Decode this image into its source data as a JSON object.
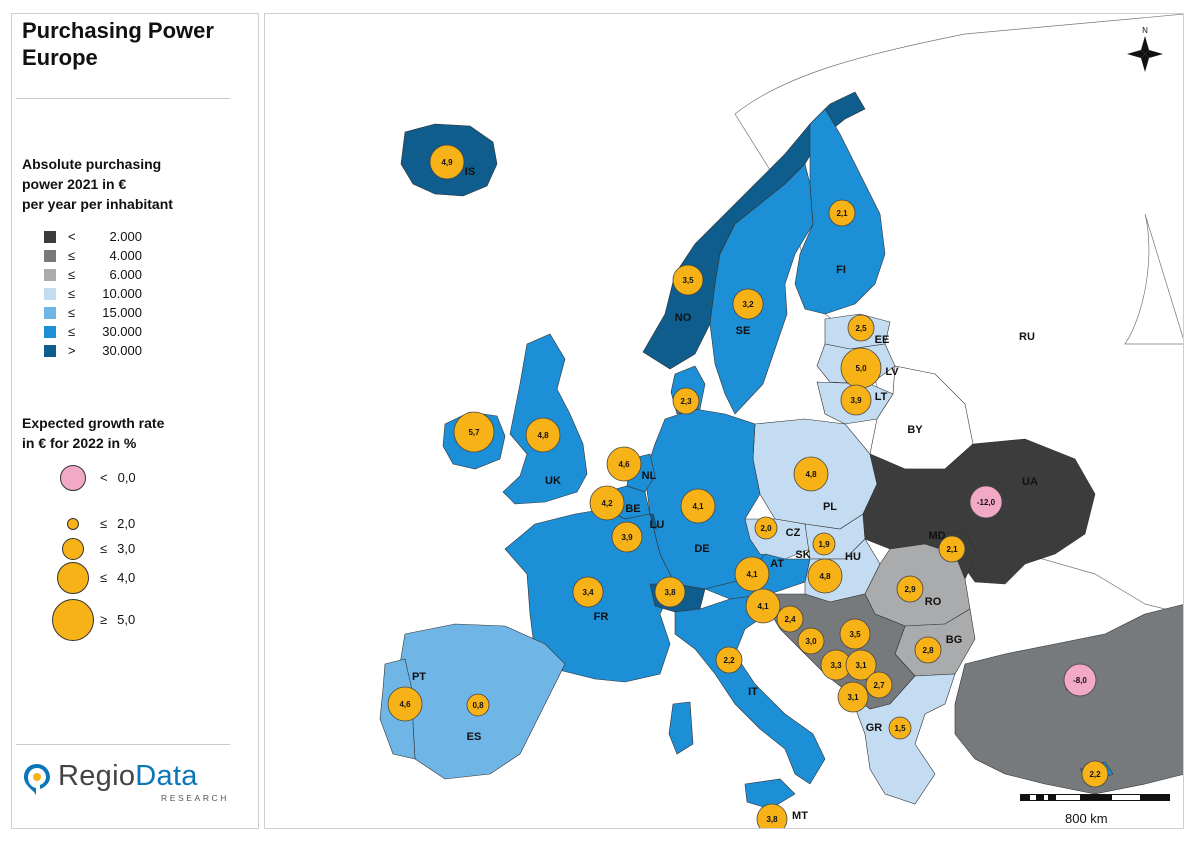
{
  "title": {
    "line1": "Purchasing Power",
    "line2": "Europe"
  },
  "legend_classes": {
    "heading": [
      "Absolute purchasing",
      "power 2021 in €",
      "per year per inhabitant"
    ],
    "items": [
      {
        "op": "<",
        "value": "2.000",
        "color": "#3c3c3c"
      },
      {
        "op": "≤",
        "value": "4.000",
        "color": "#777a7d"
      },
      {
        "op": "≤",
        "value": "6.000",
        "color": "#a9abad"
      },
      {
        "op": "≤",
        "value": "10.000",
        "color": "#c4dcf2"
      },
      {
        "op": "≤",
        "value": "15.000",
        "color": "#6fb5e6"
      },
      {
        "op": "≤",
        "value": "30.000",
        "color": "#1d8fd6"
      },
      {
        "op": ">",
        "value": "30.000",
        "color": "#0e5d8c"
      }
    ]
  },
  "legend_growth": {
    "heading": [
      "Expected growth rate",
      "in € for 2022 in %"
    ],
    "items": [
      {
        "op": "<",
        "value": "0,0",
        "color": "#f2a9c6"
      },
      {
        "op": "≤",
        "value": "2,0",
        "color": "#f7b217"
      },
      {
        "op": "≤",
        "value": "3,0",
        "color": "#f7b217"
      },
      {
        "op": "≤",
        "value": "4,0",
        "color": "#f7b217"
      },
      {
        "op": "≥",
        "value": "5,0",
        "color": "#f7b217"
      }
    ]
  },
  "logo": {
    "name_a": "Regio",
    "name_b": "Data",
    "sub": "RESEARCH"
  },
  "compass_label": "N",
  "scale_label": "800 km",
  "country_labels": [
    {
      "code": "IS"
    },
    {
      "code": "NO"
    },
    {
      "code": "SE"
    },
    {
      "code": "FI"
    },
    {
      "code": "RU"
    },
    {
      "code": "EE"
    },
    {
      "code": "LV"
    },
    {
      "code": "LT"
    },
    {
      "code": "BY"
    },
    {
      "code": "UK"
    },
    {
      "code": "NL"
    },
    {
      "code": "BE"
    },
    {
      "code": "LU"
    },
    {
      "code": "DE"
    },
    {
      "code": "PL"
    },
    {
      "code": "UA"
    },
    {
      "code": "CZ"
    },
    {
      "code": "SK"
    },
    {
      "code": "HU"
    },
    {
      "code": "MD"
    },
    {
      "code": "AT"
    },
    {
      "code": "FR"
    },
    {
      "code": "RO"
    },
    {
      "code": "BG"
    },
    {
      "code": "PT"
    },
    {
      "code": "ES"
    },
    {
      "code": "IT"
    },
    {
      "code": "TR"
    },
    {
      "code": "GR"
    },
    {
      "code": "MT"
    }
  ],
  "growth_bubbles": [
    {
      "label": "4,9",
      "value": 4.9
    },
    {
      "label": "3,5",
      "value": 3.5
    },
    {
      "label": "3,2",
      "value": 3.2
    },
    {
      "label": "2,1",
      "value": 2.1
    },
    {
      "label": "2,5",
      "value": 2.5
    },
    {
      "label": "5,0",
      "value": 5.0
    },
    {
      "label": "3,9",
      "value": 3.9
    },
    {
      "label": "2,3",
      "value": 2.3
    },
    {
      "label": "5,7",
      "value": 5.7
    },
    {
      "label": "4,8",
      "value": 4.8
    },
    {
      "label": "4,6",
      "value": 4.6
    },
    {
      "label": "4,2",
      "value": 4.2
    },
    {
      "label": "3,9",
      "value": 3.9
    },
    {
      "label": "4,1",
      "value": 4.1
    },
    {
      "label": "4,8",
      "value": 4.8
    },
    {
      "label": "-12,0",
      "value": -12.0
    },
    {
      "label": "2,0",
      "value": 2.0
    },
    {
      "label": "1,9",
      "value": 1.9
    },
    {
      "label": "4,8",
      "value": 4.8
    },
    {
      "label": "2,1",
      "value": 2.1
    },
    {
      "label": "4,1",
      "value": 4.1
    },
    {
      "label": "3,4",
      "value": 3.4
    },
    {
      "label": "3,8",
      "value": 3.8
    },
    {
      "label": "4,1",
      "value": 4.1
    },
    {
      "label": "2,9",
      "value": 2.9
    },
    {
      "label": "2,4",
      "value": 2.4
    },
    {
      "label": "3,0",
      "value": 3.0
    },
    {
      "label": "3,5",
      "value": 3.5
    },
    {
      "label": "3,3",
      "value": 3.3
    },
    {
      "label": "3,1",
      "value": 3.1
    },
    {
      "label": "2,8",
      "value": 2.8
    },
    {
      "label": "2,7",
      "value": 2.7
    },
    {
      "label": "3,1",
      "value": 3.1
    },
    {
      "label": "2,2",
      "value": 2.2
    },
    {
      "label": "4,6",
      "value": 4.6
    },
    {
      "label": "0,8",
      "value": 0.8
    },
    {
      "label": "-8,0",
      "value": -8.0
    },
    {
      "label": "1,5",
      "value": 1.5
    },
    {
      "label": "2,2",
      "value": 2.2
    },
    {
      "label": "3,8",
      "value": 3.8
    }
  ]
}
